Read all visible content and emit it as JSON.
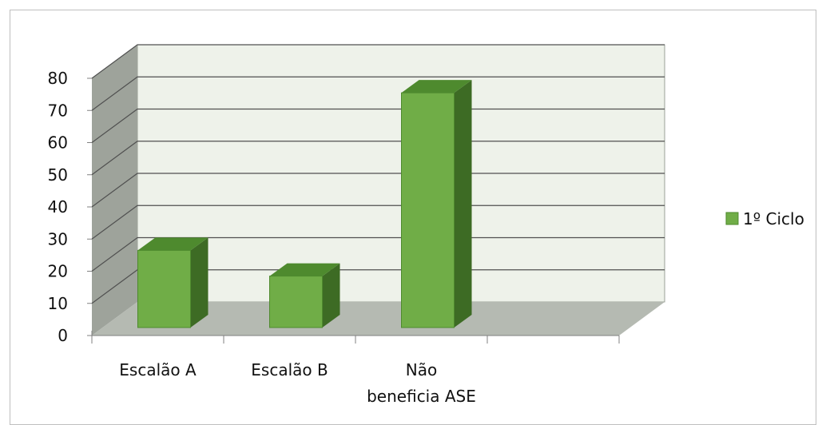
{
  "chart_data": {
    "type": "bar",
    "categories": [
      "Escalão A",
      "Escalão B",
      "Não beneficia ASE"
    ],
    "category_lines": [
      [
        "Escalão A"
      ],
      [
        "Escalão B"
      ],
      [
        "Não",
        "beneficia ASE"
      ]
    ],
    "series": [
      {
        "name": "1º Ciclo",
        "values": [
          24,
          16,
          73
        ],
        "color": "#70ad47"
      }
    ],
    "ylim": [
      0,
      80
    ],
    "yticks": [
      0,
      10,
      20,
      30,
      40,
      50,
      60,
      70,
      80
    ],
    "grid": true,
    "legend": "right",
    "style": "3d",
    "colors": {
      "wall": "#eef2ea",
      "side_wall": "#9ea39b",
      "floor": "#b5bab2",
      "bar_front": "#70ad47",
      "bar_top": "#4e8a2e",
      "bar_side": "#3d6b24"
    }
  }
}
